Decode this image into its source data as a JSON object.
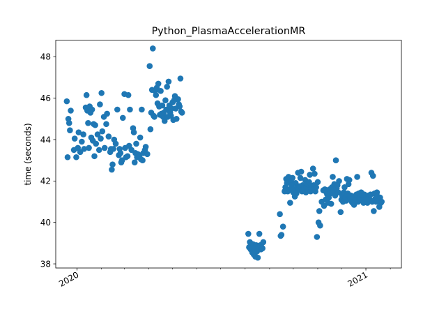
{
  "chart_data": {
    "type": "scatter",
    "title": "Python_PlasmaAccelerationMR",
    "xlabel": "",
    "ylabel": "time (seconds)",
    "x_axis": "date",
    "xlim": [
      "2019-12-05",
      "2021-02-15"
    ],
    "ylim": [
      37.8,
      48.8
    ],
    "x_major_ticks": [
      {
        "date": "2020-01-01",
        "label": "2020"
      },
      {
        "date": "2021-01-01",
        "label": "2021"
      }
    ],
    "x_minor_ticks": [
      "2020-02-01",
      "2020-03-01",
      "2020-04-01",
      "2020-05-01",
      "2020-06-01",
      "2020-07-01",
      "2020-08-01",
      "2020-09-01",
      "2020-10-01",
      "2020-11-01",
      "2020-12-01",
      "2021-02-01"
    ],
    "y_ticks": [
      38,
      40,
      42,
      44,
      46,
      48
    ],
    "marker_color": "#1f77b4",
    "grid": false,
    "legend": "none",
    "series": [
      {
        "points": [
          [
            "2019-12-19",
            45.85
          ],
          [
            "2019-12-20",
            43.15
          ],
          [
            "2019-12-21",
            45.0
          ],
          [
            "2019-12-22",
            44.8
          ],
          [
            "2019-12-23",
            44.45
          ],
          [
            "2019-12-24",
            45.4
          ],
          [
            "2019-12-28",
            43.5
          ],
          [
            "2019-12-29",
            44.05
          ],
          [
            "2019-12-31",
            43.15
          ],
          [
            "2020-01-02",
            43.6
          ],
          [
            "2020-01-03",
            44.35
          ],
          [
            "2020-01-05",
            43.4
          ],
          [
            "2020-01-07",
            43.9
          ],
          [
            "2020-01-09",
            44.25
          ],
          [
            "2020-01-10",
            43.55
          ],
          [
            "2020-01-12",
            45.55
          ],
          [
            "2020-01-13",
            46.15
          ],
          [
            "2020-01-14",
            45.4
          ],
          [
            "2020-01-15",
            44.8
          ],
          [
            "2020-01-16",
            43.6
          ],
          [
            "2020-01-17",
            45.6
          ],
          [
            "2020-01-18",
            45.3
          ],
          [
            "2020-01-19",
            44.1
          ],
          [
            "2020-01-20",
            45.45
          ],
          [
            "2020-01-21",
            43.95
          ],
          [
            "2020-01-22",
            44.75
          ],
          [
            "2020-01-23",
            43.2
          ],
          [
            "2020-01-24",
            44.7
          ],
          [
            "2020-01-25",
            43.8
          ],
          [
            "2020-01-27",
            44.25
          ],
          [
            "2020-01-29",
            43.5
          ],
          [
            "2020-01-30",
            45.7
          ],
          [
            "2020-01-31",
            44.05
          ],
          [
            "2020-02-01",
            46.25
          ],
          [
            "2020-02-02",
            44.4
          ],
          [
            "2020-02-04",
            45.1
          ],
          [
            "2020-02-05",
            43.6
          ],
          [
            "2020-02-07",
            44.75
          ],
          [
            "2020-02-08",
            45.25
          ],
          [
            "2020-02-10",
            44.15
          ],
          [
            "2020-02-12",
            43.4
          ],
          [
            "2020-02-13",
            43.55
          ],
          [
            "2020-02-14",
            42.55
          ],
          [
            "2020-02-15",
            42.8
          ],
          [
            "2020-02-16",
            43.55
          ],
          [
            "2020-02-17",
            44.0
          ],
          [
            "2020-02-19",
            43.8
          ],
          [
            "2020-02-21",
            45.45
          ],
          [
            "2020-02-23",
            43.25
          ],
          [
            "2020-02-24",
            43.55
          ],
          [
            "2020-02-25",
            43.35
          ],
          [
            "2020-02-26",
            42.9
          ],
          [
            "2020-02-27",
            43.0
          ],
          [
            "2020-02-28",
            45.05
          ],
          [
            "2020-03-01",
            46.2
          ],
          [
            "2020-03-02",
            43.6
          ],
          [
            "2020-03-03",
            43.15
          ],
          [
            "2020-03-05",
            43.2
          ],
          [
            "2020-03-06",
            46.15
          ],
          [
            "2020-03-07",
            43.7
          ],
          [
            "2020-03-08",
            45.45
          ],
          [
            "2020-03-10",
            43.5
          ],
          [
            "2020-03-12",
            44.55
          ],
          [
            "2020-03-13",
            44.35
          ],
          [
            "2020-03-14",
            42.9
          ],
          [
            "2020-03-15",
            43.35
          ],
          [
            "2020-03-16",
            43.8
          ],
          [
            "2020-03-17",
            43.15
          ],
          [
            "2020-03-18",
            43.3
          ],
          [
            "2020-03-20",
            43.25
          ],
          [
            "2020-03-21",
            44.1
          ],
          [
            "2020-03-22",
            43.05
          ],
          [
            "2020-03-23",
            45.45
          ],
          [
            "2020-03-24",
            43.0
          ],
          [
            "2020-03-25",
            43.35
          ],
          [
            "2020-03-27",
            43.5
          ],
          [
            "2020-03-28",
            43.65
          ],
          [
            "2020-03-30",
            43.3
          ],
          [
            "2020-04-02",
            47.55
          ],
          [
            "2020-04-03",
            44.5
          ],
          [
            "2020-04-04",
            45.3
          ],
          [
            "2020-04-05",
            46.4
          ],
          [
            "2020-04-06",
            48.4
          ],
          [
            "2020-04-07",
            45.15
          ],
          [
            "2020-04-08",
            45.1
          ],
          [
            "2020-04-09",
            46.35
          ],
          [
            "2020-04-10",
            46.15
          ],
          [
            "2020-04-11",
            46.5
          ],
          [
            "2020-04-12",
            45.75
          ],
          [
            "2020-04-13",
            46.7
          ],
          [
            "2020-04-14",
            45.6
          ],
          [
            "2020-04-15",
            45.2
          ],
          [
            "2020-04-16",
            46.35
          ],
          [
            "2020-04-17",
            45.25
          ],
          [
            "2020-04-18",
            45.65
          ],
          [
            "2020-04-19",
            45.1
          ],
          [
            "2020-04-20",
            45.3
          ],
          [
            "2020-04-21",
            44.9
          ],
          [
            "2020-04-22",
            45.9
          ],
          [
            "2020-04-23",
            45.45
          ],
          [
            "2020-04-24",
            46.55
          ],
          [
            "2020-04-25",
            45.1
          ],
          [
            "2020-04-26",
            46.8
          ],
          [
            "2020-04-27",
            45.65
          ],
          [
            "2020-04-28",
            45.3
          ],
          [
            "2020-04-29",
            45.15
          ],
          [
            "2020-04-30",
            45.5
          ],
          [
            "2020-05-01",
            45.8
          ],
          [
            "2020-05-02",
            44.95
          ],
          [
            "2020-05-03",
            45.9
          ],
          [
            "2020-05-04",
            46.1
          ],
          [
            "2020-05-05",
            45.5
          ],
          [
            "2020-05-06",
            45.0
          ],
          [
            "2020-05-08",
            45.95
          ],
          [
            "2020-05-09",
            45.7
          ],
          [
            "2020-05-10",
            45.6
          ],
          [
            "2020-05-11",
            46.95
          ],
          [
            "2020-05-12",
            45.35
          ],
          [
            "2020-05-13",
            45.3
          ],
          [
            "2020-08-05",
            39.45
          ],
          [
            "2020-08-06",
            38.8
          ],
          [
            "2020-08-07",
            39.05
          ],
          [
            "2020-08-08",
            38.7
          ],
          [
            "2020-08-09",
            38.85
          ],
          [
            "2020-08-10",
            38.55
          ],
          [
            "2020-08-11",
            38.95
          ],
          [
            "2020-08-12",
            38.45
          ],
          [
            "2020-08-13",
            38.75
          ],
          [
            "2020-08-14",
            38.35
          ],
          [
            "2020-08-15",
            38.9
          ],
          [
            "2020-08-16",
            38.6
          ],
          [
            "2020-08-17",
            38.3
          ],
          [
            "2020-08-18",
            38.85
          ],
          [
            "2020-08-19",
            39.45
          ],
          [
            "2020-08-20",
            38.9
          ],
          [
            "2020-08-21",
            38.7
          ],
          [
            "2020-08-22",
            38.8
          ],
          [
            "2020-08-23",
            38.75
          ],
          [
            "2020-08-24",
            39.05
          ],
          [
            "2020-09-14",
            40.4
          ],
          [
            "2020-09-15",
            39.35
          ],
          [
            "2020-09-16",
            39.4
          ],
          [
            "2020-09-18",
            39.8
          ],
          [
            "2020-09-20",
            41.5
          ],
          [
            "2020-09-21",
            41.7
          ],
          [
            "2020-09-22",
            42.1
          ],
          [
            "2020-09-23",
            41.9
          ],
          [
            "2020-09-24",
            41.5
          ],
          [
            "2020-09-25",
            42.2
          ],
          [
            "2020-09-26",
            41.6
          ],
          [
            "2020-09-27",
            40.95
          ],
          [
            "2020-09-28",
            42.0
          ],
          [
            "2020-09-29",
            41.8
          ],
          [
            "2020-09-30",
            42.15
          ],
          [
            "2020-10-01",
            41.45
          ],
          [
            "2020-10-02",
            41.6
          ],
          [
            "2020-10-03",
            41.25
          ],
          [
            "2020-10-04",
            41.9
          ],
          [
            "2020-10-05",
            41.4
          ],
          [
            "2020-10-06",
            41.7
          ],
          [
            "2020-10-07",
            42.4
          ],
          [
            "2020-10-08",
            41.6
          ],
          [
            "2020-10-09",
            41.75
          ],
          [
            "2020-10-10",
            42.15
          ],
          [
            "2020-10-11",
            42.45
          ],
          [
            "2020-10-12",
            41.5
          ],
          [
            "2020-10-13",
            41.8
          ],
          [
            "2020-10-14",
            41.55
          ],
          [
            "2020-10-15",
            41.65
          ],
          [
            "2020-10-16",
            42.05
          ],
          [
            "2020-10-17",
            41.45
          ],
          [
            "2020-10-18",
            41.7
          ],
          [
            "2020-10-19",
            41.85
          ],
          [
            "2020-10-20",
            41.55
          ],
          [
            "2020-10-21",
            41.95
          ],
          [
            "2020-10-22",
            42.3
          ],
          [
            "2020-10-23",
            41.5
          ],
          [
            "2020-10-24",
            41.75
          ],
          [
            "2020-10-25",
            41.65
          ],
          [
            "2020-10-26",
            42.6
          ],
          [
            "2020-10-27",
            41.8
          ],
          [
            "2020-10-28",
            42.35
          ],
          [
            "2020-10-29",
            41.5
          ],
          [
            "2020-10-30",
            41.7
          ],
          [
            "2020-10-31",
            39.3
          ],
          [
            "2020-11-01",
            41.95
          ],
          [
            "2020-11-02",
            40.0
          ],
          [
            "2020-11-03",
            40.55
          ],
          [
            "2020-11-04",
            39.85
          ],
          [
            "2020-11-06",
            41.0
          ],
          [
            "2020-11-08",
            41.55
          ],
          [
            "2020-11-09",
            40.8
          ],
          [
            "2020-11-10",
            41.6
          ],
          [
            "2020-11-11",
            41.1
          ],
          [
            "2020-11-12",
            41.45
          ],
          [
            "2020-11-13",
            41.35
          ],
          [
            "2020-11-14",
            40.95
          ],
          [
            "2020-11-15",
            41.2
          ],
          [
            "2020-11-16",
            41.6
          ],
          [
            "2020-11-17",
            41.4
          ],
          [
            "2020-11-18",
            40.9
          ],
          [
            "2020-11-19",
            41.7
          ],
          [
            "2020-11-20",
            42.2
          ],
          [
            "2020-11-21",
            41.55
          ],
          [
            "2020-11-22",
            41.85
          ],
          [
            "2020-11-23",
            41.3
          ],
          [
            "2020-11-24",
            43.0
          ],
          [
            "2020-11-25",
            41.65
          ],
          [
            "2020-11-26",
            41.8
          ],
          [
            "2020-11-27",
            41.45
          ],
          [
            "2020-11-28",
            42.0
          ],
          [
            "2020-11-30",
            40.5
          ],
          [
            "2020-12-01",
            41.1
          ],
          [
            "2020-12-02",
            41.3
          ],
          [
            "2020-12-03",
            41.0
          ],
          [
            "2020-12-04",
            41.45
          ],
          [
            "2020-12-05",
            41.7
          ],
          [
            "2020-12-06",
            41.2
          ],
          [
            "2020-12-07",
            41.05
          ],
          [
            "2020-12-08",
            42.1
          ],
          [
            "2020-12-09",
            41.4
          ],
          [
            "2020-12-10",
            41.85
          ],
          [
            "2020-12-11",
            42.05
          ],
          [
            "2020-12-12",
            41.15
          ],
          [
            "2020-12-13",
            41.3
          ],
          [
            "2020-12-14",
            41.0
          ],
          [
            "2020-12-15",
            40.95
          ],
          [
            "2020-12-16",
            41.25
          ],
          [
            "2020-12-17",
            40.85
          ],
          [
            "2020-12-19",
            41.1
          ],
          [
            "2020-12-20",
            41.35
          ],
          [
            "2020-12-21",
            42.2
          ],
          [
            "2020-12-22",
            41.0
          ],
          [
            "2020-12-23",
            41.4
          ],
          [
            "2020-12-24",
            41.15
          ],
          [
            "2020-12-25",
            41.2
          ],
          [
            "2020-12-26",
            41.45
          ],
          [
            "2020-12-27",
            41.3
          ],
          [
            "2020-12-28",
            41.1
          ],
          [
            "2020-12-29",
            40.95
          ],
          [
            "2020-12-30",
            41.35
          ],
          [
            "2021-01-01",
            41.05
          ],
          [
            "2021-01-02",
            41.2
          ],
          [
            "2021-01-03",
            40.95
          ],
          [
            "2021-01-04",
            41.3
          ],
          [
            "2021-01-05",
            41.25
          ],
          [
            "2021-01-06",
            41.1
          ],
          [
            "2021-01-07",
            41.35
          ],
          [
            "2021-01-08",
            42.4
          ],
          [
            "2021-01-09",
            41.0
          ],
          [
            "2021-01-10",
            42.25
          ],
          [
            "2021-01-11",
            40.55
          ],
          [
            "2021-01-12",
            41.4
          ],
          [
            "2021-01-13",
            41.15
          ],
          [
            "2021-01-14",
            41.0
          ],
          [
            "2021-01-15",
            41.45
          ],
          [
            "2021-01-16",
            41.25
          ],
          [
            "2021-01-17",
            41.1
          ],
          [
            "2021-01-18",
            40.75
          ],
          [
            "2021-01-19",
            41.2
          ],
          [
            "2021-01-20",
            40.95
          ],
          [
            "2021-01-21",
            41.0
          ]
        ]
      }
    ]
  }
}
